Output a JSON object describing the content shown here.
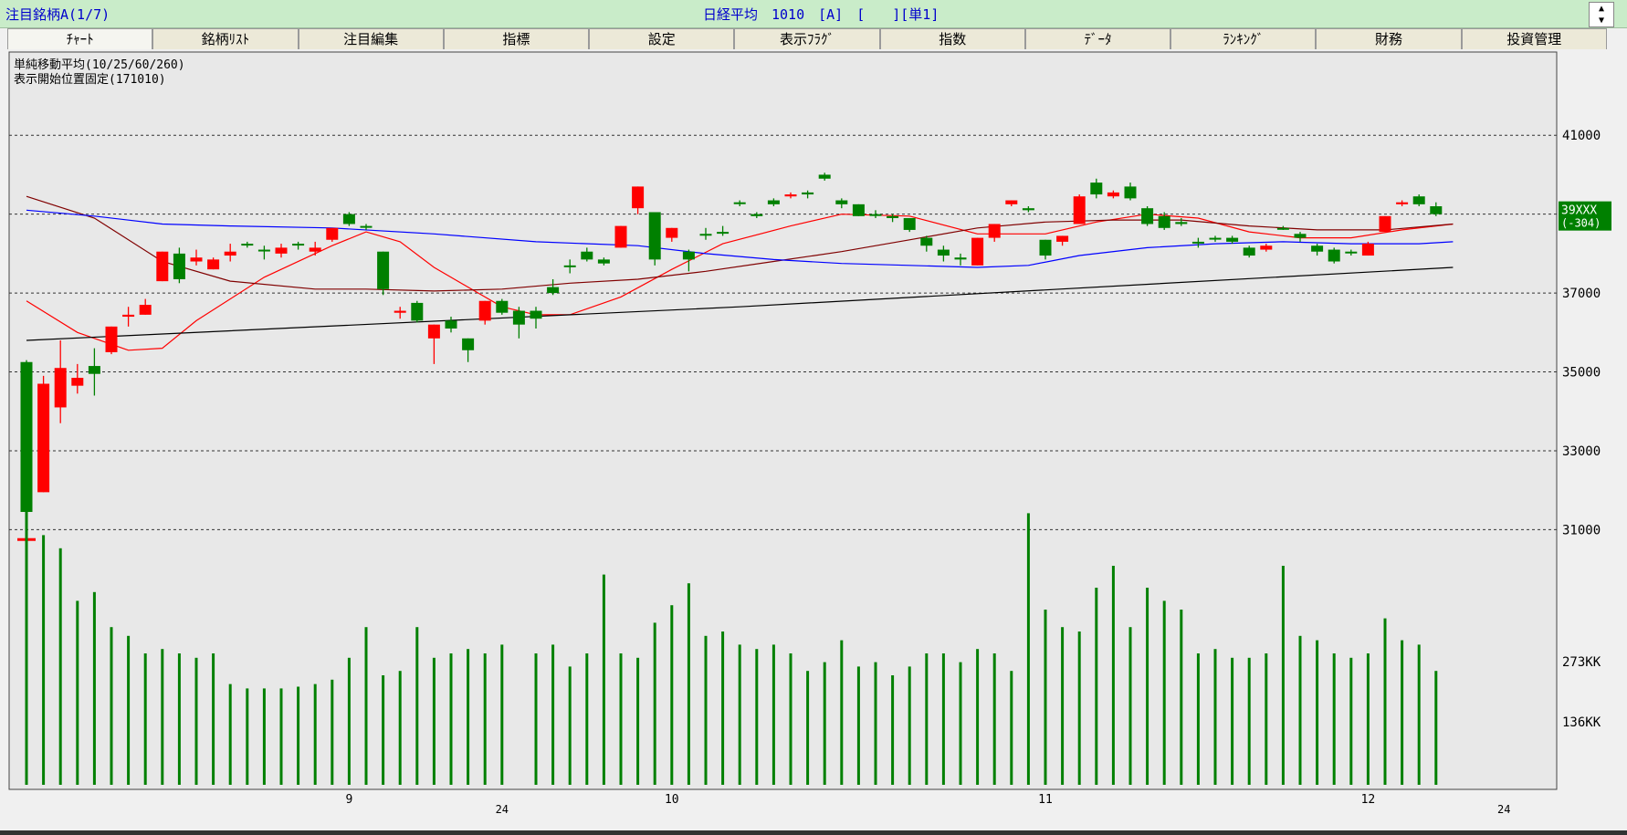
{
  "window": {
    "left_title": "注目銘柄A(1/7)",
    "center_title": "日経平均　1010　[A]　[　　][単1]",
    "spin_up": "▲",
    "spin_down": "▼"
  },
  "tabs": [
    "ﾁｬｰﾄ",
    "銘柄ﾘｽﾄ",
    "注目編集",
    "指標",
    "設定",
    "表示ﾌﾗｸﾞ",
    "指数",
    "ﾃﾞｰﾀ",
    "ﾗﾝｷﾝｸﾞ",
    "財務",
    "投資管理"
  ],
  "colors": {
    "background": "#e8e8e8",
    "up_candle": "#ff0000",
    "down_candle": "#008000",
    "ma10": "#ff0000",
    "ma25": "#800000",
    "ma60": "#0000ff",
    "ma260": "#000000",
    "volume": "#008000"
  },
  "chart_data": {
    "type": "candlestick",
    "info_lines": [
      "単純移動平均(10/25/60/260)",
      "表示開始位置固定(171010)"
    ],
    "price_axis": {
      "ticks": [
        41000,
        37000,
        35000,
        33000,
        31000
      ],
      "grid_values": [
        41000,
        39000,
        37000,
        35000,
        33000,
        31000
      ],
      "ylim": [
        30200,
        42000
      ]
    },
    "current_price_label": {
      "value": "39XXX",
      "change": "(-304)"
    },
    "volume_axis": {
      "ticks": [
        "273KK",
        "136KK"
      ],
      "ylim": [
        0,
        440
      ]
    },
    "x_labels": [
      {
        "label": "9",
        "index": 19
      },
      {
        "label": "10",
        "index": 38
      },
      {
        "label": "11",
        "index": 60
      },
      {
        "label": "12",
        "index": 79
      }
    ],
    "year_labels": [
      {
        "label": "24",
        "index": 28
      },
      {
        "label": "24",
        "index": 87
      }
    ],
    "candles": [
      [
        35250,
        31450,
        35300,
        31150
      ],
      [
        31950,
        34700,
        34900,
        31950
      ],
      [
        34100,
        35100,
        35800,
        33700
      ],
      [
        34650,
        34850,
        35200,
        34450
      ],
      [
        35150,
        34950,
        35600,
        34400
      ],
      [
        35500,
        36150,
        36150,
        35450
      ],
      [
        36400,
        36450,
        36650,
        36150
      ],
      [
        36450,
        36700,
        36850,
        36450
      ],
      [
        37300,
        38050,
        38050,
        37300
      ],
      [
        38000,
        37350,
        38150,
        37250
      ],
      [
        37800,
        37900,
        38100,
        37700
      ],
      [
        37600,
        37850,
        37900,
        37600
      ],
      [
        37950,
        38050,
        38250,
        37800
      ],
      [
        38250,
        38250,
        38300,
        38150
      ],
      [
        38100,
        38100,
        38200,
        37850
      ],
      [
        38000,
        38150,
        38250,
        37900
      ],
      [
        38250,
        38250,
        38300,
        38100
      ],
      [
        38050,
        38150,
        38300,
        37950
      ],
      [
        38350,
        38650,
        38650,
        38300
      ],
      [
        39000,
        38750,
        39050,
        38700
      ],
      [
        38700,
        38700,
        38750,
        38600
      ],
      [
        38050,
        37100,
        38050,
        36950
      ],
      [
        36500,
        36550,
        36650,
        36350
      ],
      [
        36750,
        36300,
        36800,
        36250
      ],
      [
        35850,
        36200,
        36200,
        35200
      ],
      [
        36300,
        36100,
        36400,
        36000
      ],
      [
        35850,
        35550,
        35850,
        35250
      ],
      [
        36300,
        36800,
        36800,
        36200
      ],
      [
        36800,
        36500,
        36850,
        36450
      ],
      [
        36550,
        36200,
        36650,
        35850
      ],
      [
        36550,
        36350,
        36650,
        36100
      ],
      [
        37150,
        37000,
        37350,
        36950
      ],
      [
        37700,
        37700,
        37850,
        37500
      ],
      [
        38050,
        37850,
        38150,
        37800
      ],
      [
        37850,
        37750,
        37900,
        37700
      ],
      [
        38150,
        38700,
        38700,
        38150
      ],
      [
        39150,
        39700,
        39700,
        39000
      ],
      [
        39050,
        37850,
        39050,
        37700
      ],
      [
        38400,
        38650,
        38650,
        38300
      ],
      [
        38050,
        37850,
        38100,
        37550
      ],
      [
        38500,
        38500,
        38650,
        38350
      ],
      [
        38550,
        38550,
        38700,
        38450
      ],
      [
        39300,
        39300,
        39350,
        39200
      ],
      [
        39000,
        38950,
        39050,
        38900
      ],
      [
        39350,
        39250,
        39400,
        39200
      ],
      [
        39450,
        39500,
        39550,
        39400
      ],
      [
        39550,
        39500,
        39600,
        39400
      ],
      [
        40000,
        39900,
        40050,
        39850
      ],
      [
        39350,
        39250,
        39400,
        39150
      ],
      [
        39250,
        38950,
        39250,
        38950
      ],
      [
        39000,
        39000,
        39100,
        38900
      ],
      [
        38950,
        38900,
        39000,
        38800
      ],
      [
        38900,
        38600,
        38900,
        38550
      ],
      [
        38400,
        38200,
        38450,
        38050
      ],
      [
        38100,
        37950,
        38200,
        37800
      ],
      [
        37900,
        37850,
        38000,
        37700
      ],
      [
        37700,
        38400,
        38400,
        37700
      ],
      [
        38400,
        38750,
        38750,
        38300
      ],
      [
        39250,
        39350,
        39350,
        39200
      ],
      [
        39150,
        39100,
        39200,
        39050
      ],
      [
        38350,
        37950,
        38350,
        37850
      ],
      [
        38300,
        38450,
        38450,
        38200
      ],
      [
        38750,
        39450,
        39500,
        38750
      ],
      [
        39800,
        39500,
        39900,
        39400
      ],
      [
        39450,
        39550,
        39600,
        39400
      ],
      [
        39700,
        39400,
        39800,
        39350
      ],
      [
        39150,
        38750,
        39200,
        38700
      ],
      [
        38950,
        38650,
        39050,
        38600
      ],
      [
        38800,
        38750,
        38900,
        38700
      ],
      [
        38300,
        38300,
        38400,
        38150
      ],
      [
        38400,
        38400,
        38450,
        38300
      ],
      [
        38400,
        38300,
        38450,
        38250
      ],
      [
        38150,
        37950,
        38200,
        37900
      ],
      [
        38100,
        38200,
        38250,
        38050
      ],
      [
        38650,
        38650,
        38700,
        38600
      ],
      [
        38500,
        38400,
        38550,
        38300
      ],
      [
        38200,
        38050,
        38250,
        37950
      ],
      [
        38100,
        37800,
        38150,
        37750
      ],
      [
        38050,
        38050,
        38100,
        37950
      ],
      [
        37950,
        38250,
        38300,
        37950
      ],
      [
        38550,
        38950,
        38950,
        38550
      ],
      [
        39250,
        39300,
        39350,
        39200
      ],
      [
        39450,
        39250,
        39500,
        39200
      ],
      [
        39200,
        39000,
        39300,
        38950
      ]
    ],
    "extra_mark": {
      "index": 0,
      "price": 30750
    },
    "moving_averages": [
      {
        "period": 10,
        "points": [
          [
            0,
            36800
          ],
          [
            3,
            36000
          ],
          [
            6,
            35550
          ],
          [
            8,
            35600
          ],
          [
            10,
            36300
          ],
          [
            14,
            37400
          ],
          [
            18,
            38200
          ],
          [
            20,
            38550
          ],
          [
            22,
            38300
          ],
          [
            24,
            37650
          ],
          [
            26,
            37150
          ],
          [
            28,
            36650
          ],
          [
            30,
            36450
          ],
          [
            32,
            36450
          ],
          [
            35,
            36900
          ],
          [
            38,
            37600
          ],
          [
            41,
            38250
          ],
          [
            45,
            38700
          ],
          [
            48,
            39000
          ],
          [
            52,
            38950
          ],
          [
            56,
            38500
          ],
          [
            58,
            38500
          ],
          [
            60,
            38500
          ],
          [
            63,
            38800
          ],
          [
            66,
            39000
          ],
          [
            69,
            38900
          ],
          [
            72,
            38550
          ],
          [
            75,
            38400
          ],
          [
            78,
            38400
          ],
          [
            81,
            38600
          ],
          [
            84,
            38750
          ]
        ]
      },
      {
        "period": 25,
        "points": [
          [
            0,
            39450
          ],
          [
            4,
            38900
          ],
          [
            8,
            37800
          ],
          [
            12,
            37300
          ],
          [
            17,
            37100
          ],
          [
            20,
            37100
          ],
          [
            24,
            37050
          ],
          [
            28,
            37100
          ],
          [
            32,
            37250
          ],
          [
            36,
            37350
          ],
          [
            40,
            37550
          ],
          [
            44,
            37800
          ],
          [
            48,
            38050
          ],
          [
            52,
            38350
          ],
          [
            56,
            38650
          ],
          [
            60,
            38800
          ],
          [
            64,
            38850
          ],
          [
            68,
            38850
          ],
          [
            72,
            38700
          ],
          [
            76,
            38600
          ],
          [
            80,
            38600
          ],
          [
            84,
            38750
          ]
        ]
      },
      {
        "period": 60,
        "points": [
          [
            0,
            39100
          ],
          [
            4,
            38950
          ],
          [
            8,
            38750
          ],
          [
            12,
            38700
          ],
          [
            18,
            38650
          ],
          [
            24,
            38500
          ],
          [
            30,
            38300
          ],
          [
            36,
            38200
          ],
          [
            40,
            38000
          ],
          [
            44,
            37850
          ],
          [
            48,
            37750
          ],
          [
            52,
            37700
          ],
          [
            56,
            37650
          ],
          [
            59,
            37700
          ],
          [
            62,
            37950
          ],
          [
            66,
            38150
          ],
          [
            70,
            38250
          ],
          [
            74,
            38300
          ],
          [
            78,
            38250
          ],
          [
            82,
            38250
          ],
          [
            84,
            38300
          ]
        ]
      },
      {
        "period": 260,
        "points": [
          [
            0,
            35800
          ],
          [
            42,
            36650
          ],
          [
            84,
            37650
          ]
        ]
      }
    ],
    "volumes": [
      330,
      285,
      270,
      210,
      220,
      180,
      170,
      150,
      155,
      150,
      145,
      150,
      115,
      110,
      110,
      110,
      112,
      115,
      120,
      145,
      180,
      125,
      130,
      180,
      145,
      150,
      155,
      150,
      160,
      0,
      150,
      160,
      135,
      150,
      240,
      150,
      145,
      185,
      205,
      230,
      170,
      175,
      160,
      155,
      160,
      150,
      130,
      140,
      165,
      135,
      140,
      125,
      135,
      150,
      150,
      140,
      155,
      150,
      130,
      310,
      200,
      180,
      175,
      225,
      250,
      180,
      225,
      210,
      200,
      150,
      155,
      145,
      145,
      150,
      250,
      170,
      165,
      150,
      145,
      150,
      190,
      165,
      160,
      130
    ]
  }
}
